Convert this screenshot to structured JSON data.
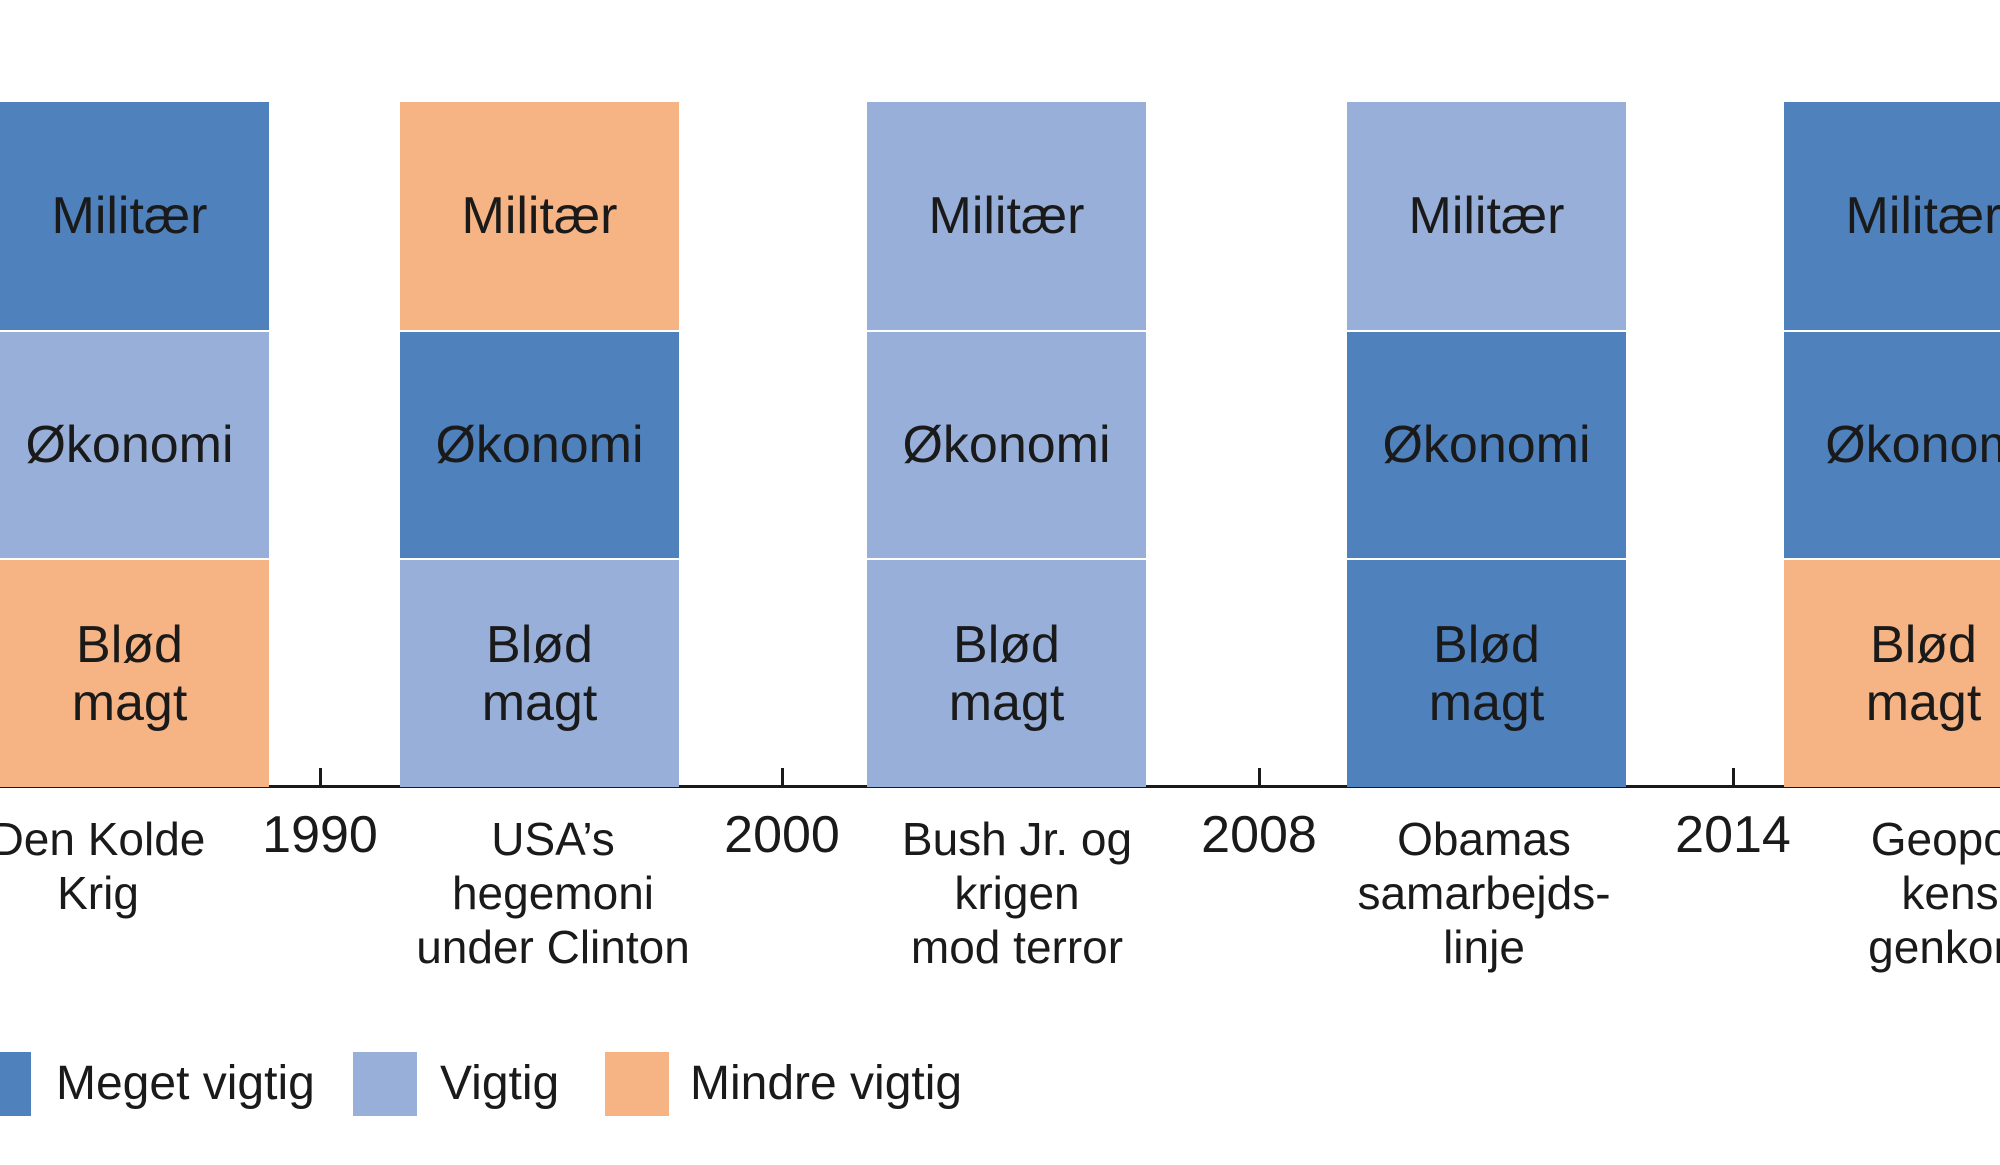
{
  "colors": {
    "meget_vigtig": "#4f81bd",
    "vigtig": "#98b0d9",
    "mindre_vigtig": "#f6b383"
  },
  "years": [
    "1990",
    "2000",
    "2008",
    "2014"
  ],
  "periods": [
    {
      "label": "Den Kolde\nKrig",
      "cells": [
        {
          "text": "Militær",
          "level": "meget_vigtig"
        },
        {
          "text": "Økonomi",
          "level": "vigtig"
        },
        {
          "text": "Blød\nmagt",
          "level": "mindre_vigtig"
        }
      ]
    },
    {
      "label": "USA’s\nhegemoni\nunder Clinton",
      "cells": [
        {
          "text": "Militær",
          "level": "mindre_vigtig"
        },
        {
          "text": "Økonomi",
          "level": "meget_vigtig"
        },
        {
          "text": "Blød\nmagt",
          "level": "vigtig"
        }
      ]
    },
    {
      "label": "Bush Jr. og\nkrigen\nmod terror",
      "cells": [
        {
          "text": "Militær",
          "level": "vigtig"
        },
        {
          "text": "Økonomi",
          "level": "vigtig"
        },
        {
          "text": "Blød\nmagt",
          "level": "vigtig"
        }
      ]
    },
    {
      "label": "Obamas\nsamarbejds-\nlinje",
      "cells": [
        {
          "text": "Militær",
          "level": "vigtig"
        },
        {
          "text": "Økonomi",
          "level": "meget_vigtig"
        },
        {
          "text": "Blød\nmagt",
          "level": "meget_vigtig"
        }
      ]
    },
    {
      "label": "Geopoli\nkens\ngenkom",
      "cells": [
        {
          "text": "Militær",
          "level": "meget_vigtig"
        },
        {
          "text": "Økonom",
          "level": "meget_vigtig"
        },
        {
          "text": "Blød\nmagt",
          "level": "mindre_vigtig"
        }
      ]
    }
  ],
  "legend": [
    {
      "label": "Meget vigtig",
      "level": "meget_vigtig"
    },
    {
      "label": "Vigtig",
      "level": "vigtig"
    },
    {
      "label": "Mindre vigtig",
      "level": "mindre_vigtig"
    }
  ]
}
